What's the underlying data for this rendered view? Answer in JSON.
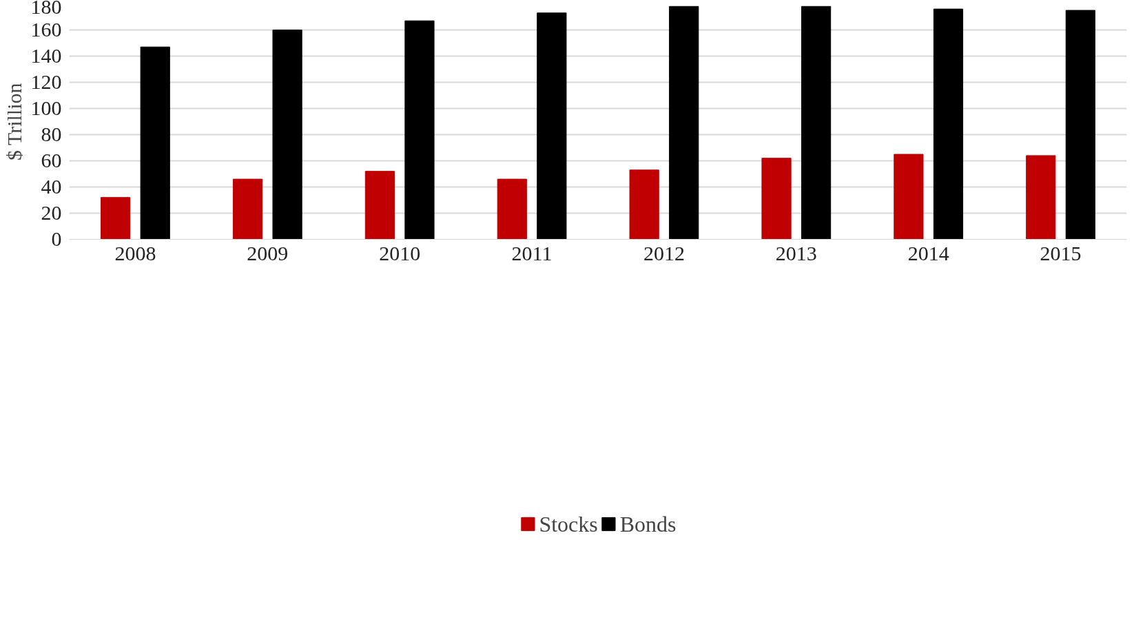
{
  "chart_data": {
    "type": "bar",
    "ylabel": "$ Trillion",
    "categories": [
      "2008",
      "2009",
      "2010",
      "2011",
      "2012",
      "2013",
      "2014",
      "2015"
    ],
    "series": [
      {
        "name": "Stocks",
        "color": "#c00000",
        "values": [
          32,
          46,
          52,
          46,
          53,
          62,
          65,
          64
        ]
      },
      {
        "name": "Bonds",
        "color": "#000000",
        "values": [
          147,
          160,
          167,
          173,
          178,
          178,
          176,
          175
        ]
      }
    ],
    "ylim": [
      0,
      180
    ],
    "yticks": [
      0,
      20,
      40,
      60,
      80,
      100,
      120,
      140,
      160,
      180
    ],
    "grid": "y",
    "legend": "bottom"
  }
}
